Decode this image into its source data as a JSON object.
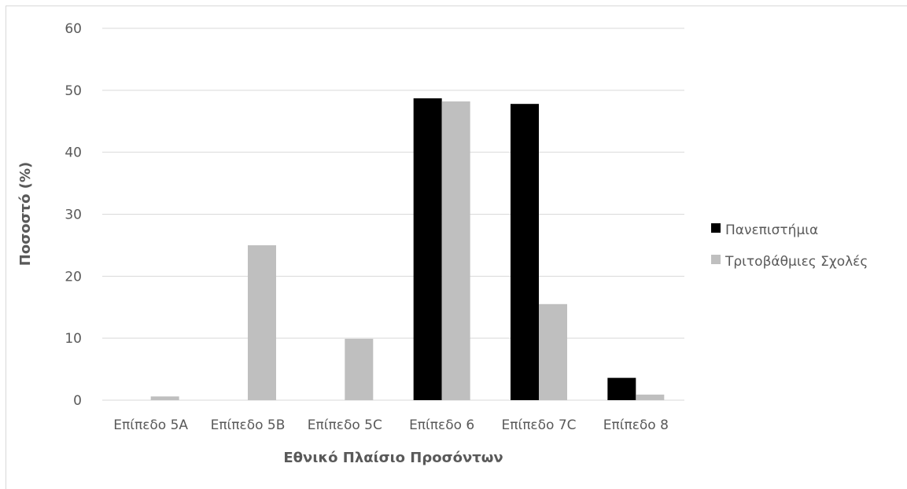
{
  "chart_data": {
    "type": "bar",
    "xlabel": "Εθνικό Πλαίσιο Προσόντων",
    "ylabel": "Ποσοστό (%)",
    "ylim": [
      0,
      60
    ],
    "yticks": [
      0,
      10,
      20,
      30,
      40,
      50,
      60
    ],
    "grid": "horizontal",
    "legend_position": "right",
    "categories": [
      "Επίπεδο 5A",
      "Επίπεδο 5B",
      "Επίπεδο 5C",
      "Επίπεδο 6",
      "Επίπεδο 7C",
      "Επίπεδο 8"
    ],
    "series": [
      {
        "name": "Πανεπιστήμια",
        "color": "#000000",
        "values": [
          0,
          0,
          0,
          48.7,
          47.8,
          3.6
        ]
      },
      {
        "name": "Τριτοβάθμιες Σχολές",
        "color": "#bfbfbf",
        "values": [
          0.6,
          25.0,
          9.9,
          48.2,
          15.5,
          0.9
        ]
      }
    ]
  }
}
